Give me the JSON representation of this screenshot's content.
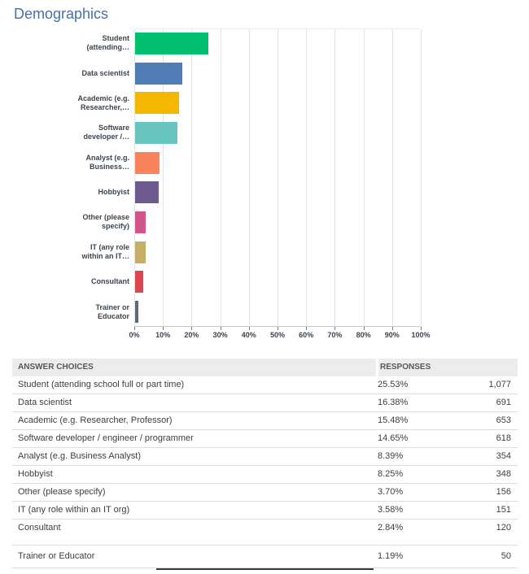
{
  "page": {
    "title": "Demographics"
  },
  "chart_data": {
    "type": "bar",
    "orientation": "horizontal",
    "title": "Demographics",
    "categories": [
      "Student (attending school full or part time)",
      "Data scientist",
      "Academic (e.g. Researcher, Professor)",
      "Software developer / engineer / programmer",
      "Analyst (e.g. Business Analyst)",
      "Hobbyist",
      "Other (please specify)",
      "IT (any role within an IT org)",
      "Consultant",
      "Trainer or Educator"
    ],
    "category_label_lines": [
      [
        "Student",
        "(attending…"
      ],
      [
        "Data scientist"
      ],
      [
        "Academic (e.g.",
        "Researcher,…"
      ],
      [
        "Software",
        "developer /…"
      ],
      [
        "Analyst (e.g.",
        "Business…"
      ],
      [
        "Hobbyist"
      ],
      [
        "Other (please",
        "specify)"
      ],
      [
        "IT (any role",
        "within an IT…"
      ],
      [
        "Consultant"
      ],
      [
        "Trainer or",
        "Educator"
      ]
    ],
    "values_pct": [
      25.53,
      16.38,
      15.48,
      14.65,
      8.39,
      8.25,
      3.7,
      3.58,
      2.84,
      1.19
    ],
    "counts": [
      1077,
      691,
      653,
      618,
      354,
      348,
      156,
      151,
      120,
      50
    ],
    "bar_colors": [
      "#00bf6f",
      "#507cb6",
      "#f3b700",
      "#68c5c0",
      "#f9835b",
      "#6e5a8f",
      "#d0558a",
      "#c5ae66",
      "#da4550",
      "#5f6b74"
    ],
    "x_ticks": [
      "0%",
      "10%",
      "20%",
      "30%",
      "40%",
      "50%",
      "60%",
      "70%",
      "80%",
      "90%",
      "100%"
    ],
    "xlim": [
      0,
      100
    ],
    "grid": "vertical-major",
    "legend": "none",
    "ylabel": "",
    "xlabel": ""
  },
  "table": {
    "headers": {
      "answer": "ANSWER CHOICES",
      "responses": "RESPONSES"
    },
    "rows": [
      {
        "answer": "Student (attending school full or part time)",
        "percent": "25.53%",
        "count": "1,077"
      },
      {
        "answer": "Data scientist",
        "percent": "16.38%",
        "count": "691"
      },
      {
        "answer": "Academic (e.g. Researcher, Professor)",
        "percent": "15.48%",
        "count": "653"
      },
      {
        "answer": "Software developer / engineer / programmer",
        "percent": "14.65%",
        "count": "618"
      },
      {
        "answer": "Analyst (e.g. Business Analyst)",
        "percent": "8.39%",
        "count": "354"
      },
      {
        "answer": "Hobbyist",
        "percent": "8.25%",
        "count": "348"
      },
      {
        "answer": "Other (please specify)",
        "percent": "3.70%",
        "count": "156"
      },
      {
        "answer": "IT (any role within an IT org)",
        "percent": "3.58%",
        "count": "151"
      },
      {
        "answer": "Consultant",
        "percent": "2.84%",
        "count": "120"
      },
      {
        "answer": "Trainer or Educator",
        "percent": "1.19%",
        "count": "50"
      }
    ]
  },
  "colors": {
    "title_blue": "#4471a8",
    "label_dark": "#3d454f",
    "table_header_bg": "#ececec",
    "row_border": "#dcdcdc"
  }
}
